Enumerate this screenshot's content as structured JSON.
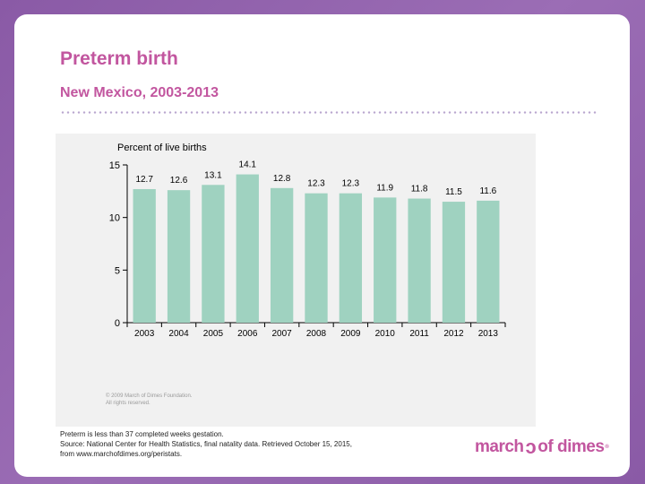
{
  "slide": {
    "title": "Preterm birth",
    "subtitle": "New Mexico, 2003-2013",
    "copyright_line1": "© 2009 March of Dimes Foundation.",
    "copyright_line2": "All rights reserved.",
    "note": "Preterm is less than 37 completed weeks gestation.",
    "source_line1": "Source: National Center for Health Statistics, final natality data. Retrieved October 15, 2015,",
    "source_line2": "from www.marchofdimes.org/peristats.",
    "logo_left": "march",
    "logo_right": "of dimes",
    "logo_reg": "®",
    "colors": {
      "title": "#c2569f",
      "bar": "#9fd2c0",
      "axis": "#000000"
    }
  },
  "chart_data": {
    "type": "bar",
    "title": "Percent of live births",
    "categories": [
      "2003",
      "2004",
      "2005",
      "2006",
      "2007",
      "2008",
      "2009",
      "2010",
      "2011",
      "2012",
      "2013"
    ],
    "values": [
      12.7,
      12.6,
      13.1,
      14.1,
      12.8,
      12.3,
      12.3,
      11.9,
      11.8,
      11.5,
      11.6
    ],
    "ylim": [
      0,
      15
    ],
    "yticks": [
      0,
      5,
      10,
      15
    ],
    "xlabel": "",
    "ylabel": "Percent of live births",
    "grid": false
  }
}
